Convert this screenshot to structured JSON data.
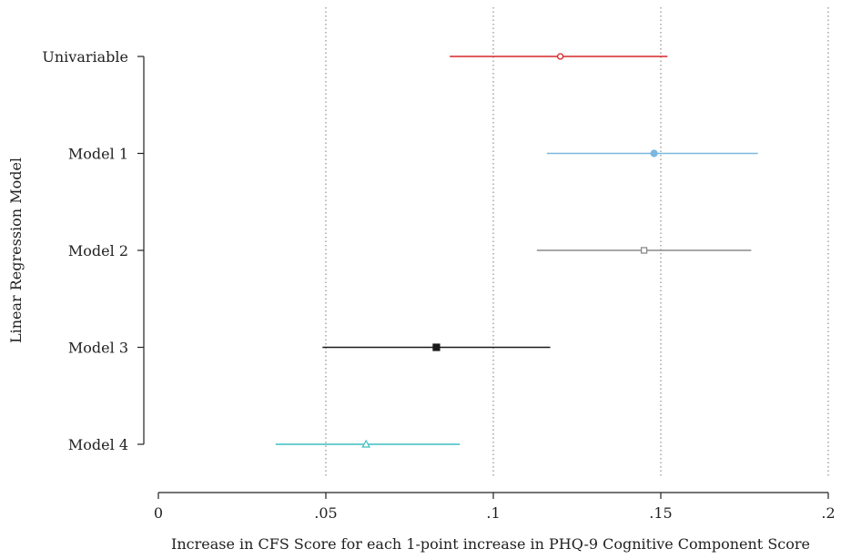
{
  "chart_data": {
    "type": "forest",
    "title": "",
    "xlabel": "Increase in CFS Score for each 1-point increase in PHQ-9 Cognitive Component Score",
    "ylabel": "Linear Regression Model",
    "xlim": [
      0,
      0.2
    ],
    "xticks": [
      {
        "value": 0,
        "label": "0"
      },
      {
        "value": 0.05,
        "label": ".05"
      },
      {
        "value": 0.1,
        "label": ".1"
      },
      {
        "value": 0.15,
        "label": ".15"
      },
      {
        "value": 0.2,
        "label": ".2"
      }
    ],
    "gridlines_x": [
      0.05,
      0.1,
      0.15,
      0.2
    ],
    "grid_style": "dotted vertical",
    "models": [
      {
        "label": "Univariable",
        "estimate": 0.12,
        "ci_low": 0.087,
        "ci_high": 0.152,
        "color": "#d62728",
        "marker": "circle-open"
      },
      {
        "label": "Model 1",
        "estimate": 0.148,
        "ci_low": 0.116,
        "ci_high": 0.179,
        "color": "#7ab8e0",
        "marker": "circle-filled"
      },
      {
        "label": "Model 2",
        "estimate": 0.145,
        "ci_low": 0.113,
        "ci_high": 0.177,
        "color": "#8a8a8a",
        "marker": "square-open"
      },
      {
        "label": "Model 3",
        "estimate": 0.083,
        "ci_low": 0.049,
        "ci_high": 0.117,
        "color": "#1a1a1a",
        "marker": "square-filled"
      },
      {
        "label": "Model 4",
        "estimate": 0.062,
        "ci_low": 0.035,
        "ci_high": 0.09,
        "color": "#3fbfbf",
        "marker": "triangle-open"
      }
    ]
  }
}
